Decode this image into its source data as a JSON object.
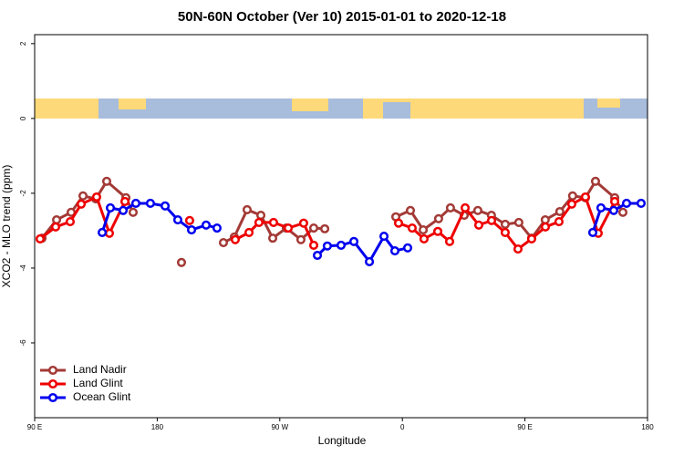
{
  "chart_data": {
    "type": "line",
    "title": "50N-60N October (Ver 10)   2015-01-01 to 2020-12-18",
    "x_label": "Longitude",
    "y_label": "XCO2 - MLO trend (ppm)",
    "xlim": [
      90,
      540
    ],
    "xticks": [
      {
        "value": 90,
        "label": "90 E"
      },
      {
        "value": 180,
        "label": "180"
      },
      {
        "value": 270,
        "label": "90 W"
      },
      {
        "value": 360,
        "label": "0"
      },
      {
        "value": 450,
        "label": "90 E"
      },
      {
        "value": 540,
        "label": "180"
      }
    ],
    "ylim": [
      -8,
      2.24
    ],
    "yticks": [
      2,
      0,
      -2,
      -4,
      -6
    ],
    "legend": "bottomleft",
    "series": [
      {
        "name": "Land Nadir",
        "color": "#a33a36",
        "x": [
          95.4,
          106.1,
          116.8,
          125.5,
          134.9,
          142.9,
          157.0,
          162.3,
          null,
          197.8,
          null,
          228.6,
          236.6,
          246.0,
          256.1,
          264.8,
          274.8,
          285.5,
          294.9,
          303.0,
          null,
          355.2,
          365.9,
          375.3,
          386.6,
          395.3,
          405.4,
          415.4,
          425.4,
          435.5,
          445.5,
          454.9,
          464.9,
          475.6,
          485.0,
          494.4,
          501.8,
          515.9,
          521.9
        ],
        "values": [
          -3.2,
          -2.71,
          -2.51,
          -2.07,
          -2.15,
          -1.68,
          -2.12,
          -2.51,
          null,
          -3.85,
          null,
          -3.32,
          -3.17,
          -2.44,
          -2.59,
          -3.2,
          -2.93,
          -3.24,
          -2.93,
          -2.95,
          null,
          -2.63,
          -2.46,
          -2.98,
          -2.68,
          -2.39,
          -2.59,
          -2.46,
          -2.59,
          -2.83,
          -2.78,
          -3.2,
          -2.71,
          -2.49,
          -2.07,
          -2.12,
          -1.68,
          -2.12,
          -2.51
        ]
      },
      {
        "name": "Land Glint",
        "color": "#ee0000",
        "x": [
          94.0,
          105.4,
          116.1,
          124.2,
          135.5,
          144.9,
          156.3,
          null,
          203.8,
          null,
          237.3,
          247.4,
          254.7,
          265.4,
          276.2,
          287.5,
          294.9,
          null,
          357.2,
          367.2,
          375.9,
          386.0,
          394.7,
          406.1,
          416.1,
          425.5,
          435.5,
          444.9,
          454.9,
          465.0,
          475.0,
          484.4,
          494.4,
          503.8,
          515.9
        ],
        "values": [
          -3.22,
          -2.9,
          -2.76,
          -2.29,
          -2.1,
          -3.07,
          -2.22,
          null,
          -2.73,
          null,
          -3.24,
          -3.05,
          -2.78,
          -2.78,
          -2.93,
          -2.8,
          -3.39,
          null,
          -2.8,
          -2.93,
          -3.22,
          -3.02,
          -3.29,
          -2.39,
          -2.85,
          -2.73,
          -3.05,
          -3.49,
          -3.22,
          -2.9,
          -2.76,
          -2.29,
          -2.1,
          -3.07,
          -2.22
        ]
      },
      {
        "name": "Ocean Glint",
        "color": "#0000ee",
        "x": [
          139.6,
          145.6,
          155.0,
          164.3,
          175.0,
          185.8,
          195.1,
          205.2,
          215.9,
          223.9,
          null,
          297.6,
          304.9,
          315.0,
          324.4,
          335.8,
          346.5,
          354.5,
          363.9,
          null,
          499.8,
          505.8,
          515.2,
          524.6,
          535.3
        ],
        "values": [
          -3.05,
          -2.39,
          -2.46,
          -2.27,
          -2.27,
          -2.34,
          -2.71,
          -2.98,
          -2.85,
          -2.93,
          null,
          -3.66,
          -3.41,
          -3.39,
          -3.29,
          -3.83,
          -3.15,
          -3.54,
          -3.46,
          null,
          -3.05,
          -2.39,
          -2.46,
          -2.27,
          -2.27
        ]
      }
    ]
  }
}
